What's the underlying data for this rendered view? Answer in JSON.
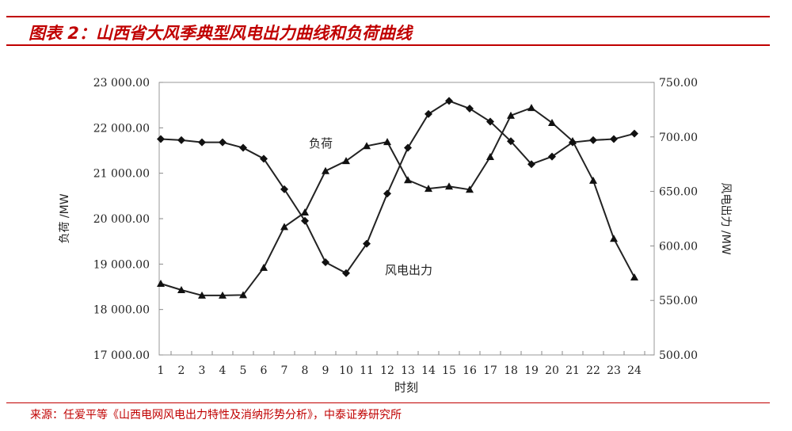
{
  "title": "图表 2：山西省大风季典型风电出力曲线和负荷曲线",
  "source": "来源：任爱平等《山西电网风电出力特性及消纳形势分析》，中泰证券研究所",
  "chart_data": {
    "type": "line",
    "xlabel": "时刻",
    "ylabel_left": "负荷 /MW",
    "ylabel_right": "风电出力 /MW",
    "x": [
      1,
      2,
      3,
      4,
      5,
      6,
      7,
      8,
      9,
      10,
      11,
      12,
      13,
      14,
      15,
      16,
      17,
      18,
      19,
      20,
      21,
      22,
      23,
      24
    ],
    "ylim_left": [
      17000,
      23000
    ],
    "yticks_left": [
      "17 000.00",
      "18 000.00",
      "19 000.00",
      "20 000.00",
      "21 000.00",
      "22 000.00",
      "23 000.00"
    ],
    "ylim_right": [
      500,
      750
    ],
    "yticks_right": [
      "500.00",
      "550.00",
      "600.00",
      "650.00",
      "700.00",
      "750.00"
    ],
    "grid": false,
    "series": [
      {
        "name": "负荷",
        "axis": "left",
        "marker": "triangle",
        "values": [
          18570,
          18430,
          18310,
          18310,
          18320,
          18920,
          19820,
          20140,
          21050,
          21270,
          21600,
          21690,
          20850,
          20660,
          20710,
          20640,
          21360,
          22270,
          22440,
          22110,
          21710,
          20840,
          19560,
          18710
        ]
      },
      {
        "name": "风电出力",
        "axis": "right",
        "marker": "diamond",
        "values": [
          698,
          697,
          695,
          695,
          690,
          680,
          652,
          623,
          585,
          575,
          602,
          648,
          690,
          721,
          733,
          726,
          714,
          696,
          675,
          682,
          695,
          697,
          698,
          703
        ]
      }
    ]
  }
}
